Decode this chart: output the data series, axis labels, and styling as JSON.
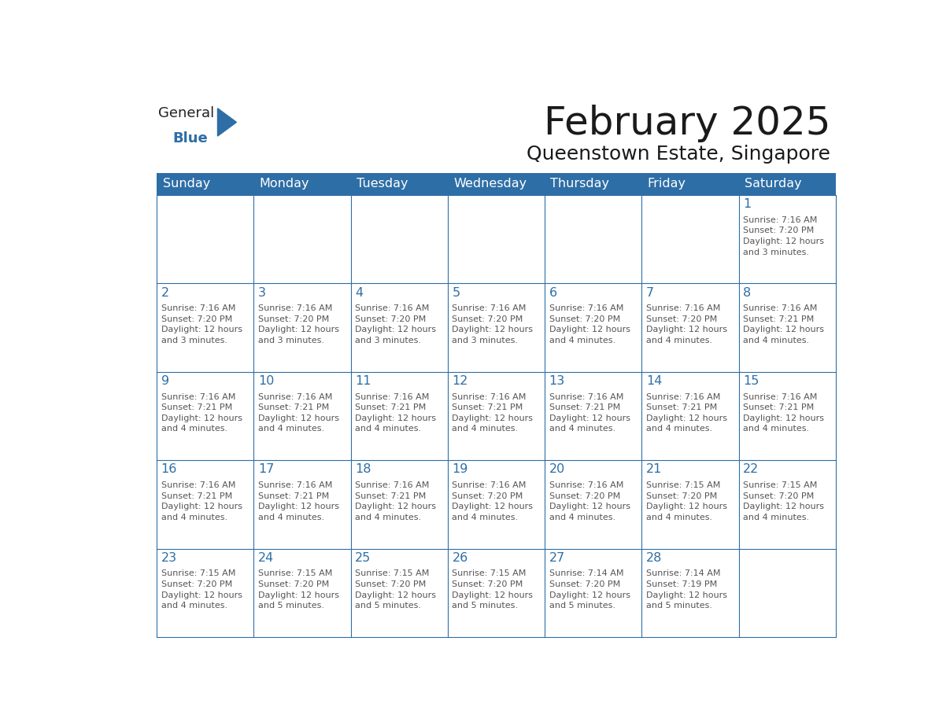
{
  "title": "February 2025",
  "subtitle": "Queenstown Estate, Singapore",
  "header_bg": "#2E6EA6",
  "header_text_color": "#FFFFFF",
  "cell_border_color": "#2E6EA6",
  "day_number_color": "#2E6EA6",
  "cell_text_color": "#555555",
  "background_color": "#FFFFFF",
  "days_of_week": [
    "Sunday",
    "Monday",
    "Tuesday",
    "Wednesday",
    "Thursday",
    "Friday",
    "Saturday"
  ],
  "calendar_data": [
    [
      {
        "day": "",
        "info": ""
      },
      {
        "day": "",
        "info": ""
      },
      {
        "day": "",
        "info": ""
      },
      {
        "day": "",
        "info": ""
      },
      {
        "day": "",
        "info": ""
      },
      {
        "day": "",
        "info": ""
      },
      {
        "day": "1",
        "info": "Sunrise: 7:16 AM\nSunset: 7:20 PM\nDaylight: 12 hours\nand 3 minutes."
      }
    ],
    [
      {
        "day": "2",
        "info": "Sunrise: 7:16 AM\nSunset: 7:20 PM\nDaylight: 12 hours\nand 3 minutes."
      },
      {
        "day": "3",
        "info": "Sunrise: 7:16 AM\nSunset: 7:20 PM\nDaylight: 12 hours\nand 3 minutes."
      },
      {
        "day": "4",
        "info": "Sunrise: 7:16 AM\nSunset: 7:20 PM\nDaylight: 12 hours\nand 3 minutes."
      },
      {
        "day": "5",
        "info": "Sunrise: 7:16 AM\nSunset: 7:20 PM\nDaylight: 12 hours\nand 3 minutes."
      },
      {
        "day": "6",
        "info": "Sunrise: 7:16 AM\nSunset: 7:20 PM\nDaylight: 12 hours\nand 4 minutes."
      },
      {
        "day": "7",
        "info": "Sunrise: 7:16 AM\nSunset: 7:20 PM\nDaylight: 12 hours\nand 4 minutes."
      },
      {
        "day": "8",
        "info": "Sunrise: 7:16 AM\nSunset: 7:21 PM\nDaylight: 12 hours\nand 4 minutes."
      }
    ],
    [
      {
        "day": "9",
        "info": "Sunrise: 7:16 AM\nSunset: 7:21 PM\nDaylight: 12 hours\nand 4 minutes."
      },
      {
        "day": "10",
        "info": "Sunrise: 7:16 AM\nSunset: 7:21 PM\nDaylight: 12 hours\nand 4 minutes."
      },
      {
        "day": "11",
        "info": "Sunrise: 7:16 AM\nSunset: 7:21 PM\nDaylight: 12 hours\nand 4 minutes."
      },
      {
        "day": "12",
        "info": "Sunrise: 7:16 AM\nSunset: 7:21 PM\nDaylight: 12 hours\nand 4 minutes."
      },
      {
        "day": "13",
        "info": "Sunrise: 7:16 AM\nSunset: 7:21 PM\nDaylight: 12 hours\nand 4 minutes."
      },
      {
        "day": "14",
        "info": "Sunrise: 7:16 AM\nSunset: 7:21 PM\nDaylight: 12 hours\nand 4 minutes."
      },
      {
        "day": "15",
        "info": "Sunrise: 7:16 AM\nSunset: 7:21 PM\nDaylight: 12 hours\nand 4 minutes."
      }
    ],
    [
      {
        "day": "16",
        "info": "Sunrise: 7:16 AM\nSunset: 7:21 PM\nDaylight: 12 hours\nand 4 minutes."
      },
      {
        "day": "17",
        "info": "Sunrise: 7:16 AM\nSunset: 7:21 PM\nDaylight: 12 hours\nand 4 minutes."
      },
      {
        "day": "18",
        "info": "Sunrise: 7:16 AM\nSunset: 7:21 PM\nDaylight: 12 hours\nand 4 minutes."
      },
      {
        "day": "19",
        "info": "Sunrise: 7:16 AM\nSunset: 7:20 PM\nDaylight: 12 hours\nand 4 minutes."
      },
      {
        "day": "20",
        "info": "Sunrise: 7:16 AM\nSunset: 7:20 PM\nDaylight: 12 hours\nand 4 minutes."
      },
      {
        "day": "21",
        "info": "Sunrise: 7:15 AM\nSunset: 7:20 PM\nDaylight: 12 hours\nand 4 minutes."
      },
      {
        "day": "22",
        "info": "Sunrise: 7:15 AM\nSunset: 7:20 PM\nDaylight: 12 hours\nand 4 minutes."
      }
    ],
    [
      {
        "day": "23",
        "info": "Sunrise: 7:15 AM\nSunset: 7:20 PM\nDaylight: 12 hours\nand 4 minutes."
      },
      {
        "day": "24",
        "info": "Sunrise: 7:15 AM\nSunset: 7:20 PM\nDaylight: 12 hours\nand 5 minutes."
      },
      {
        "day": "25",
        "info": "Sunrise: 7:15 AM\nSunset: 7:20 PM\nDaylight: 12 hours\nand 5 minutes."
      },
      {
        "day": "26",
        "info": "Sunrise: 7:15 AM\nSunset: 7:20 PM\nDaylight: 12 hours\nand 5 minutes."
      },
      {
        "day": "27",
        "info": "Sunrise: 7:14 AM\nSunset: 7:20 PM\nDaylight: 12 hours\nand 5 minutes."
      },
      {
        "day": "28",
        "info": "Sunrise: 7:14 AM\nSunset: 7:19 PM\nDaylight: 12 hours\nand 5 minutes."
      },
      {
        "day": "",
        "info": ""
      }
    ]
  ],
  "logo_triangle_color": "#2E6EA6",
  "logo_general_color": "#222222",
  "logo_blue_color": "#2E6EA6"
}
